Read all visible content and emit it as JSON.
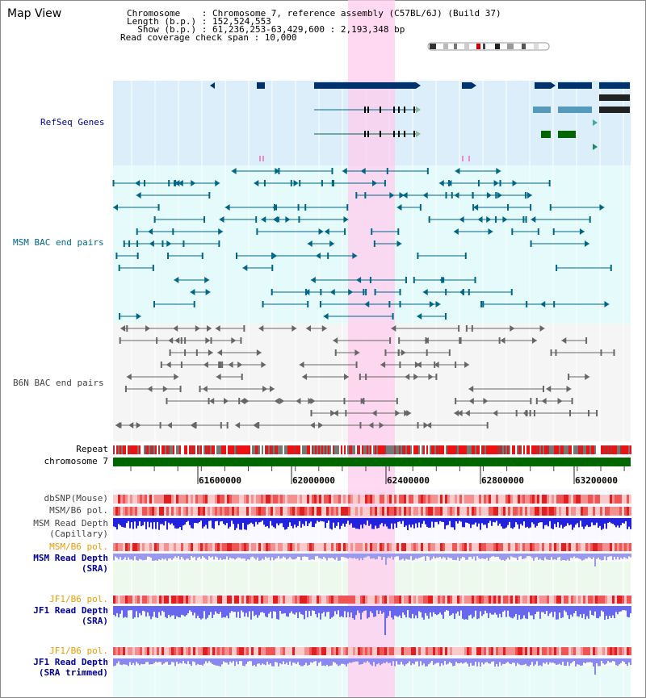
{
  "window": {
    "title": "Map View"
  },
  "header": {
    "line1": "Chromosome    : Chromosome 7, reference assembly (C57BL/6J) (Build 37)",
    "line2": "Length (b.p.) : 152,524,553",
    "line3": "  Show (b.p.) : 61,236,253-63,429,600 : 2,193,348 bp",
    "line4": "Read coverage check span : 10,000"
  },
  "tracks": {
    "refseq": "RefSeq Genes",
    "msm_bac": "MSM BAC end pairs",
    "b6n_bac": "B6N BAC end pairs",
    "repeat": "Repeat",
    "chromosome": "chromosome 7",
    "dbsnp": "dbSNP(Mouse)",
    "msm_b6_pol_1": "MSM/B6 pol.",
    "msm_read_depth_cap_1": "MSM Read Depth",
    "msm_read_depth_cap_2": "(Capillary)",
    "msm_b6_pol_2": "MSM/B6 pol.",
    "msm_read_depth_sra_1": "MSM Read Depth",
    "msm_read_depth_sra_2": "(SRA)",
    "jf1_b6_pol_1": "JF1/B6 pol.",
    "jf1_read_depth_sra_1": "JF1 Read Depth",
    "jf1_read_depth_sra_2": "(SRA)",
    "jf1_b6_pol_2": "JF1/B6 pol.",
    "jf1_read_depth_trim_1": "JF1 Read Depth",
    "jf1_read_depth_trim_2": "(SRA trimmed)"
  },
  "axis": {
    "ticks": [
      "61600000",
      "62000000",
      "62400000",
      "62800000",
      "63200000"
    ]
  },
  "colors": {
    "refseq_bg": "#dceefa",
    "msm_bg": "#e5fafa",
    "b6n_bg": "#f5f5f5",
    "highlight": "#ffccee",
    "chromosome_bar": "#006600",
    "refseq_label": "#000099",
    "msm_label": "#006688",
    "b6n_label": "#444444",
    "sra_label": "#000099",
    "jf1_pol_label": "#ee9900"
  }
}
